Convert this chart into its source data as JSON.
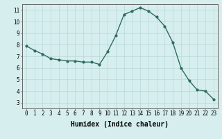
{
  "x": [
    0,
    1,
    2,
    3,
    4,
    5,
    6,
    7,
    8,
    9,
    10,
    11,
    12,
    13,
    14,
    15,
    16,
    17,
    18,
    19,
    20,
    21,
    22,
    23
  ],
  "y": [
    7.9,
    7.5,
    7.2,
    6.8,
    6.7,
    6.6,
    6.6,
    6.5,
    6.5,
    6.3,
    7.4,
    8.8,
    10.6,
    10.9,
    11.2,
    10.9,
    10.4,
    9.6,
    8.2,
    6.0,
    4.9,
    4.1,
    4.0,
    3.3
  ],
  "line_color": "#2e6b5e",
  "marker": "o",
  "marker_size": 2.0,
  "linewidth": 1.0,
  "bg_color": "#d6eeee",
  "grid_color": "#b8d8d8",
  "xlabel": "Humidex (Indice chaleur)",
  "xlim": [
    -0.5,
    23.5
  ],
  "ylim": [
    2.5,
    11.5
  ],
  "yticks": [
    3,
    4,
    5,
    6,
    7,
    8,
    9,
    10,
    11
  ],
  "xticks": [
    0,
    1,
    2,
    3,
    4,
    5,
    6,
    7,
    8,
    9,
    10,
    11,
    12,
    13,
    14,
    15,
    16,
    17,
    18,
    19,
    20,
    21,
    22,
    23
  ],
  "tick_fontsize": 5.5,
  "label_fontsize": 7.0
}
